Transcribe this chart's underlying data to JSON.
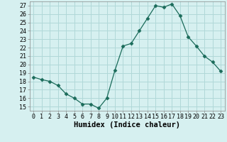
{
  "x": [
    0,
    1,
    2,
    3,
    4,
    5,
    6,
    7,
    8,
    9,
    10,
    11,
    12,
    13,
    14,
    15,
    16,
    17,
    18,
    19,
    20,
    21,
    22,
    23
  ],
  "y": [
    18.5,
    18.2,
    18.0,
    17.5,
    16.5,
    16.0,
    15.3,
    15.3,
    14.8,
    16.0,
    19.3,
    22.2,
    22.5,
    24.0,
    25.5,
    27.0,
    26.8,
    27.2,
    25.8,
    23.3,
    22.2,
    21.0,
    20.3,
    19.2
  ],
  "line_color": "#1a6b5a",
  "marker": "D",
  "marker_size": 2.5,
  "bg_color": "#d6f0f0",
  "grid_color": "#b0d8d8",
  "xlabel": "Humidex (Indice chaleur)",
  "ylabel_ticks": [
    15,
    16,
    17,
    18,
    19,
    20,
    21,
    22,
    23,
    24,
    25,
    26,
    27
  ],
  "ylim": [
    14.5,
    27.5
  ],
  "xlim": [
    -0.5,
    23.5
  ],
  "xlabel_fontsize": 7.5,
  "tick_fontsize": 6.0
}
